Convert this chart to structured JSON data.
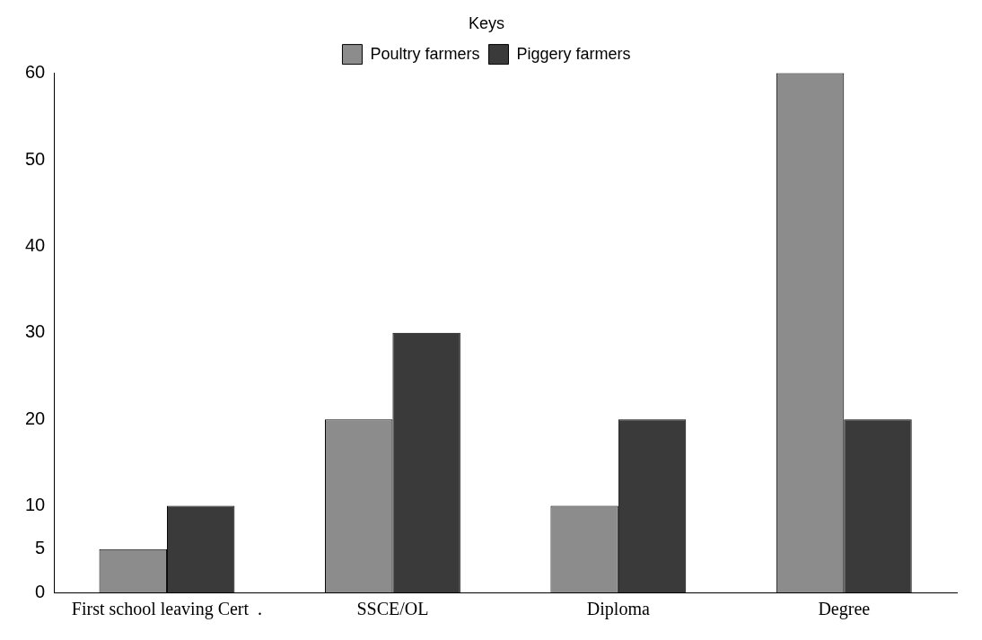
{
  "chart_data": {
    "type": "bar",
    "categories": [
      "First school leaving Cert  .",
      "SSCE/OL",
      "Diploma",
      "Degree"
    ],
    "series": [
      {
        "name": "Poultry farmers",
        "color": "#8c8c8c",
        "values": [
          5,
          20,
          10,
          60
        ]
      },
      {
        "name": "Piggery farmers",
        "color": "#3a3a3a",
        "values": [
          10,
          30,
          20,
          20
        ]
      }
    ],
    "legend_title": "Keys",
    "legend": "top",
    "grid": false,
    "ylim": [
      0,
      60
    ],
    "yticks": [
      0,
      5,
      10,
      20,
      30,
      40,
      50,
      60
    ]
  }
}
